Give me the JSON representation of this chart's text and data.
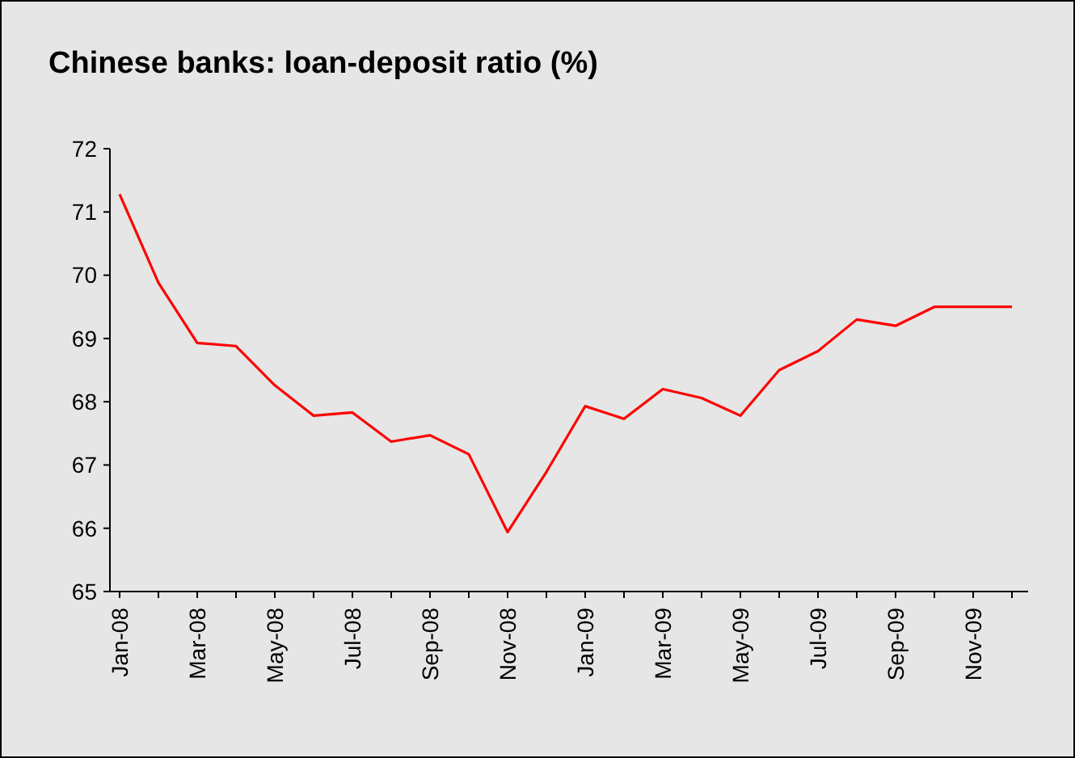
{
  "chart_data": {
    "type": "line",
    "title": "Chinese banks: loan-deposit ratio (%)",
    "categories": [
      "Jan-08",
      null,
      "Mar-08",
      null,
      "May-08",
      null,
      "Jul-08",
      null,
      "Sep-08",
      null,
      "Nov-08",
      null,
      "Jan-09",
      null,
      "Mar-09",
      null,
      "May-09",
      null,
      "Jul-09",
      null,
      "Sep-09",
      null,
      "Nov-09",
      null
    ],
    "series": [
      {
        "color": "#ff0000",
        "values": [
          71.28,
          69.88,
          68.93,
          68.88,
          68.26,
          67.78,
          67.83,
          67.37,
          67.47,
          67.17,
          65.94,
          66.89,
          67.93,
          67.73,
          68.2,
          68.06,
          67.78,
          68.5,
          68.8,
          69.3,
          69.2,
          69.5,
          69.5,
          69.5
        ]
      }
    ],
    "ylim": [
      65,
      72
    ],
    "yticks": [
      65,
      66,
      67,
      68,
      69,
      70,
      71,
      72
    ],
    "grid": false,
    "marker": "none",
    "line_style": "solid"
  }
}
